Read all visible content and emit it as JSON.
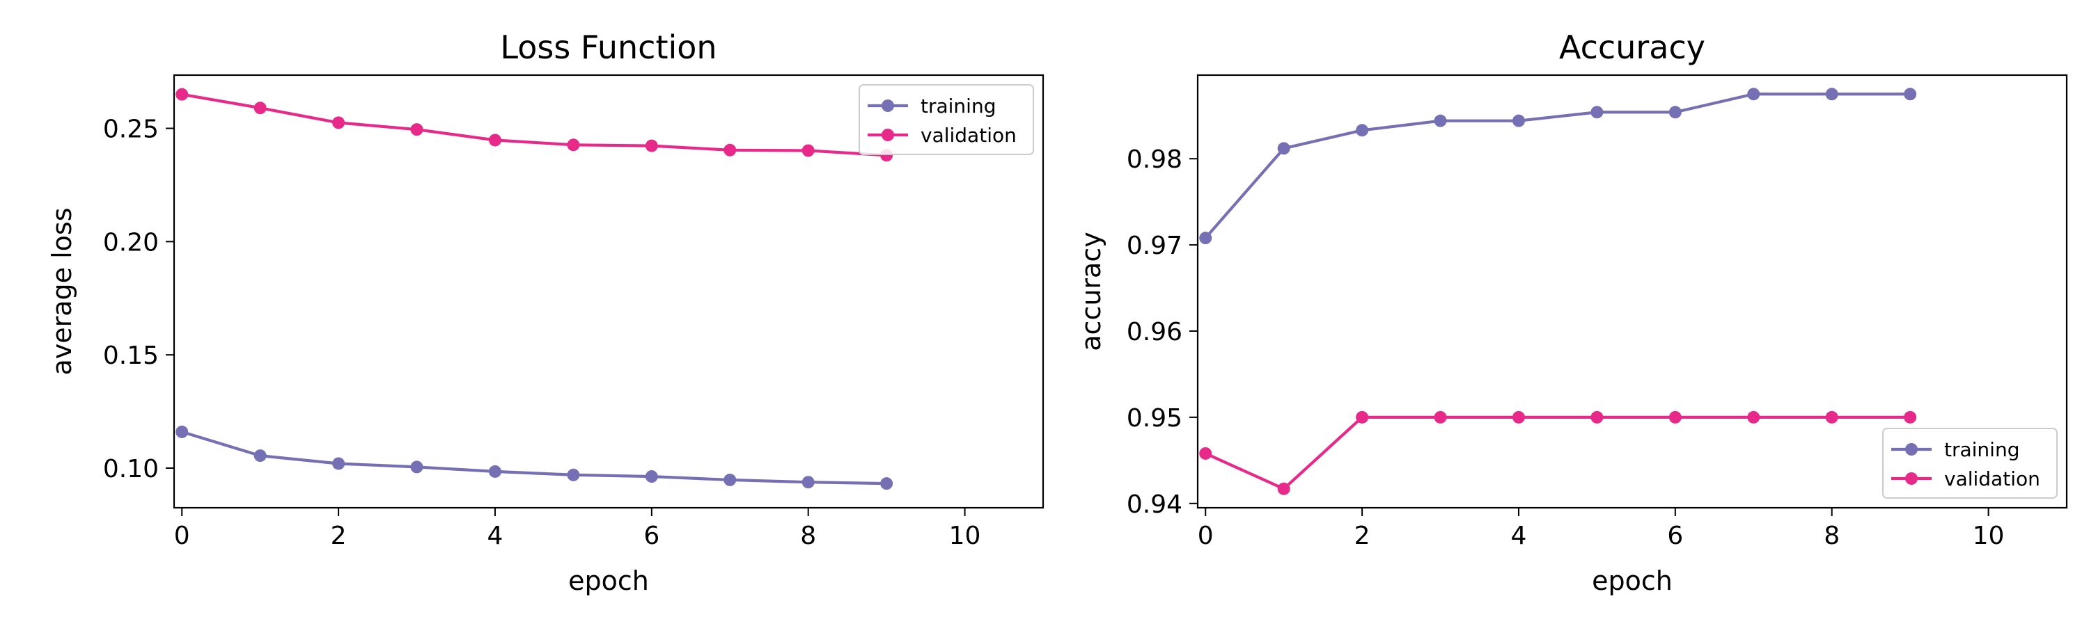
{
  "chart_data": [
    {
      "type": "line",
      "title": "Loss Function",
      "xlabel": "epoch",
      "ylabel": "average loss",
      "xlim": [
        -0.1,
        11
      ],
      "ylim": [
        0.0825,
        0.2735
      ],
      "xticks": [
        0,
        2,
        4,
        6,
        8,
        10
      ],
      "yticks": [
        0.1,
        0.15,
        0.2,
        0.25
      ],
      "xtick_labels": [
        "0",
        "2",
        "4",
        "6",
        "8",
        "10"
      ],
      "ytick_labels": [
        "0.10",
        "0.15",
        "0.20",
        "0.25"
      ],
      "grid": false,
      "legend_position": "top-right",
      "x": [
        0,
        1,
        2,
        3,
        4,
        5,
        6,
        7,
        8,
        9
      ],
      "series": [
        {
          "name": "training",
          "color": "#7570b3",
          "values": [
            0.116,
            0.1055,
            0.102,
            0.1005,
            0.0985,
            0.097,
            0.0963,
            0.0948,
            0.0938,
            0.0932
          ]
        },
        {
          "name": "validation",
          "color": "#e7298a",
          "values": [
            0.265,
            0.259,
            0.2525,
            0.2495,
            0.2448,
            0.2427,
            0.2423,
            0.2404,
            0.2402,
            0.2381
          ]
        }
      ]
    },
    {
      "type": "line",
      "title": "Accuracy",
      "xlabel": "epoch",
      "ylabel": "accuracy",
      "xlim": [
        -0.1,
        11
      ],
      "ylim": [
        0.9395,
        0.9897
      ],
      "xticks": [
        0,
        2,
        4,
        6,
        8,
        10
      ],
      "yticks": [
        0.94,
        0.95,
        0.96,
        0.97,
        0.98
      ],
      "xtick_labels": [
        "0",
        "2",
        "4",
        "6",
        "8",
        "10"
      ],
      "ytick_labels": [
        "0.94",
        "0.95",
        "0.96",
        "0.97",
        "0.98"
      ],
      "grid": false,
      "legend_position": "bottom-right",
      "x": [
        0,
        1,
        2,
        3,
        4,
        5,
        6,
        7,
        8,
        9
      ],
      "series": [
        {
          "name": "training",
          "color": "#7570b3",
          "values": [
            0.9708,
            0.9812,
            0.9833,
            0.9844,
            0.9844,
            0.9854,
            0.9854,
            0.9875,
            0.9875,
            0.9875
          ]
        },
        {
          "name": "validation",
          "color": "#e7298a",
          "values": [
            0.9458,
            0.9417,
            0.95,
            0.95,
            0.95,
            0.95,
            0.95,
            0.95,
            0.95,
            0.95
          ]
        }
      ]
    }
  ]
}
